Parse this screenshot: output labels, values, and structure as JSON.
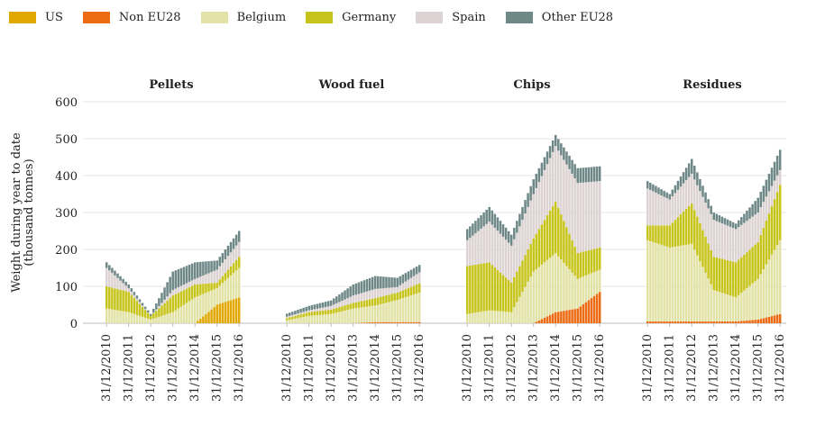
{
  "chart_data": {
    "type": "bar",
    "stacked": true,
    "ylabel": "Weight during year to date\n(thousand tonnes)",
    "ylim": [
      0,
      600
    ],
    "yticks": [
      0,
      100,
      200,
      300,
      400,
      500,
      600
    ],
    "grid": true,
    "legend_position": "top-left",
    "series": [
      {
        "name": "US",
        "color": "#E0A800"
      },
      {
        "name": "Non EU28",
        "color": "#EC6B12"
      },
      {
        "name": "Belgium",
        "color": "#E2E2A6"
      },
      {
        "name": "Germany",
        "color": "#C6C41A"
      },
      {
        "name": "Spain",
        "color": "#DDD3D3"
      },
      {
        "name": "Other EU28",
        "color": "#6E8787"
      }
    ],
    "x_tick_labels": [
      "31/12/2010",
      "31/12/2011",
      "31/12/2012",
      "31/12/2013",
      "31/12/2014",
      "31/12/2015",
      "31/12/2016"
    ],
    "x_tick_labels_note": "tick values are the date labels printed under each panel",
    "panels": [
      {
        "title": "Pellets",
        "data": [
          {
            "date": "31/12/2010",
            "US": 0,
            "Non EU28": 0,
            "Belgium": 40,
            "Germany": 60,
            "Spain": 50,
            "Other EU28": 15
          },
          {
            "date": "31/12/2011",
            "US": 0,
            "Non EU28": 0,
            "Belgium": 30,
            "Germany": 55,
            "Spain": 10,
            "Other EU28": 10
          },
          {
            "date": "31/12/2012",
            "US": 0,
            "Non EU28": 0,
            "Belgium": 10,
            "Germany": 10,
            "Spain": 0,
            "Other EU28": 5
          },
          {
            "date": "31/12/2013",
            "US": 0,
            "Non EU28": 0,
            "Belgium": 30,
            "Germany": 45,
            "Spain": 15,
            "Other EU28": 50
          },
          {
            "date": "31/12/2014",
            "US": 0,
            "Non EU28": 0,
            "Belgium": 70,
            "Germany": 35,
            "Spain": 15,
            "Other EU28": 45
          },
          {
            "date": "31/12/2015",
            "US": 50,
            "Non EU28": 0,
            "Belgium": 45,
            "Germany": 15,
            "Spain": 35,
            "Other EU28": 25
          },
          {
            "date": "31/12/2016",
            "US": 70,
            "Non EU28": 0,
            "Belgium": 80,
            "Germany": 30,
            "Spain": 40,
            "Other EU28": 30
          }
        ]
      },
      {
        "title": "Wood fuel",
        "data": [
          {
            "date": "31/12/2010",
            "US": 0,
            "Non EU28": 0,
            "Belgium": 8,
            "Germany": 6,
            "Spain": 4,
            "Other EU28": 8
          },
          {
            "date": "31/12/2011",
            "US": 0,
            "Non EU28": 0,
            "Belgium": 20,
            "Germany": 10,
            "Spain": 5,
            "Other EU28": 12
          },
          {
            "date": "31/12/2012",
            "US": 0,
            "Non EU28": 0,
            "Belgium": 25,
            "Germany": 12,
            "Spain": 10,
            "Other EU28": 15
          },
          {
            "date": "31/12/2013",
            "US": 0,
            "Non EU28": 0,
            "Belgium": 40,
            "Germany": 15,
            "Spain": 20,
            "Other EU28": 30
          },
          {
            "date": "31/12/2014",
            "US": 0,
            "Non EU28": 3,
            "Belgium": 45,
            "Germany": 20,
            "Spain": 25,
            "Other EU28": 35
          },
          {
            "date": "31/12/2015",
            "US": 0,
            "Non EU28": 3,
            "Belgium": 60,
            "Germany": 20,
            "Spain": 15,
            "Other EU28": 25
          },
          {
            "date": "31/12/2016",
            "US": 0,
            "Non EU28": 3,
            "Belgium": 80,
            "Germany": 25,
            "Spain": 30,
            "Other EU28": 20
          }
        ]
      },
      {
        "title": "Chips",
        "data": [
          {
            "date": "31/12/2010",
            "US": 0,
            "Non EU28": 0,
            "Belgium": 25,
            "Germany": 130,
            "Spain": 70,
            "Other EU28": 30
          },
          {
            "date": "31/12/2011",
            "US": 0,
            "Non EU28": 0,
            "Belgium": 35,
            "Germany": 130,
            "Spain": 110,
            "Other EU28": 40
          },
          {
            "date": "31/12/2012",
            "US": 0,
            "Non EU28": 0,
            "Belgium": 30,
            "Germany": 80,
            "Spain": 100,
            "Other EU28": 30
          },
          {
            "date": "31/12/2013",
            "US": 0,
            "Non EU28": 0,
            "Belgium": 140,
            "Germany": 90,
            "Spain": 120,
            "Other EU28": 40
          },
          {
            "date": "31/12/2014",
            "US": 0,
            "Non EU28": 30,
            "Belgium": 160,
            "Germany": 140,
            "Spain": 150,
            "Other EU28": 30
          },
          {
            "date": "31/12/2015",
            "US": 0,
            "Non EU28": 40,
            "Belgium": 80,
            "Germany": 70,
            "Spain": 190,
            "Other EU28": 40
          },
          {
            "date": "31/12/2016",
            "US": 0,
            "Non EU28": 85,
            "Belgium": 60,
            "Germany": 60,
            "Spain": 180,
            "Other EU28": 40
          }
        ]
      },
      {
        "title": "Residues",
        "data": [
          {
            "date": "31/12/2010",
            "US": 0,
            "Non EU28": 5,
            "Belgium": 220,
            "Germany": 40,
            "Spain": 100,
            "Other EU28": 20
          },
          {
            "date": "31/12/2011",
            "US": 0,
            "Non EU28": 5,
            "Belgium": 200,
            "Germany": 60,
            "Spain": 70,
            "Other EU28": 15
          },
          {
            "date": "31/12/2012",
            "US": 0,
            "Non EU28": 5,
            "Belgium": 210,
            "Germany": 110,
            "Spain": 80,
            "Other EU28": 40
          },
          {
            "date": "31/12/2013",
            "US": 0,
            "Non EU28": 5,
            "Belgium": 85,
            "Germany": 90,
            "Spain": 100,
            "Other EU28": 20
          },
          {
            "date": "31/12/2014",
            "US": 0,
            "Non EU28": 5,
            "Belgium": 65,
            "Germany": 95,
            "Spain": 90,
            "Other EU28": 15
          },
          {
            "date": "31/12/2015",
            "US": 0,
            "Non EU28": 10,
            "Belgium": 110,
            "Germany": 100,
            "Spain": 80,
            "Other EU28": 40
          },
          {
            "date": "31/12/2016",
            "US": 0,
            "Non EU28": 25,
            "Belgium": 200,
            "Germany": 150,
            "Spain": 40,
            "Other EU28": 55
          }
        ]
      }
    ]
  }
}
